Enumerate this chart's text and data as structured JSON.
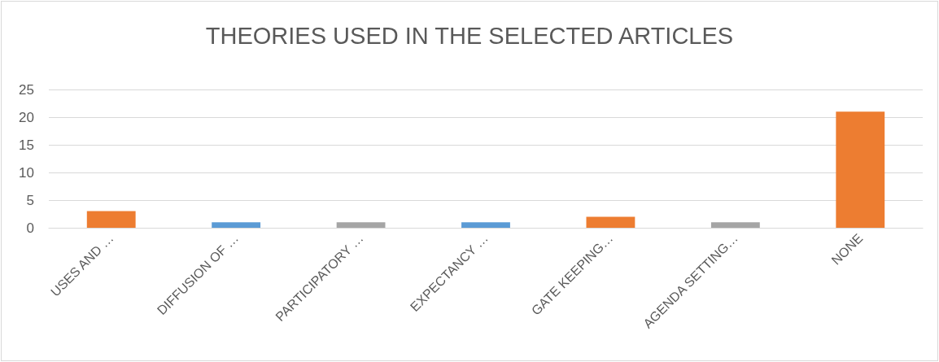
{
  "chart_data": {
    "type": "bar",
    "title": "THEORIES USED IN THE SELECTED ARTICLES",
    "categories": [
      "USES AND …",
      "DIFFUSION OF …",
      "PARTICIPATORY …",
      "EXPECTANCY …",
      "GATE KEEPING…",
      "AGENDA SETTING…",
      "NONE"
    ],
    "values": [
      3,
      1,
      1,
      1,
      2,
      1,
      21
    ],
    "colors": [
      "#ed7d31",
      "#5b9bd5",
      "#a5a5a5",
      "#5b9bd5",
      "#ed7d31",
      "#a5a5a5",
      "#ed7d31"
    ],
    "ylim": [
      0,
      25
    ],
    "yticks": [
      0,
      5,
      10,
      15,
      20,
      25
    ],
    "grid": "y"
  }
}
